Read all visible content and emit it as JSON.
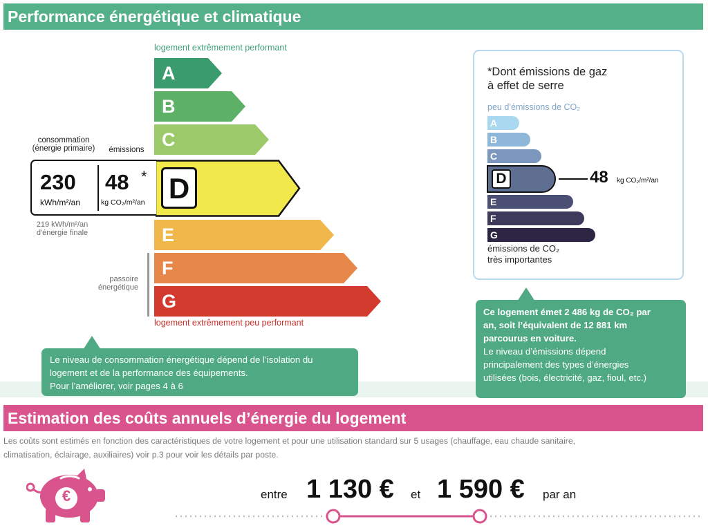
{
  "energy_section": {
    "title": "Performance énergétique et climatique",
    "top_note": "logement extrêmement performant",
    "bottom_note": "logement extrêmement peu performant",
    "consumption_label_1": "consommation",
    "consumption_label_2": "(énergie primaire)",
    "emissions_label": "émissions",
    "consumption_value": "230",
    "consumption_unit": "kWh/m²/an",
    "emissions_value": "48",
    "emissions_star": "*",
    "emissions_unit": "kg CO₂/m²/an",
    "final_energy_1": "219 kWh/m²/an",
    "final_energy_2": "d'énergie finale",
    "passoire_1": "passoire",
    "passoire_2": "énergétique",
    "current_class": "D",
    "classes": [
      {
        "letter": "A",
        "color": "#3a9b6e"
      },
      {
        "letter": "B",
        "color": "#5cb167"
      },
      {
        "letter": "C",
        "color": "#9cc96a"
      },
      {
        "letter": "D",
        "color": "#f1e84c"
      },
      {
        "letter": "E",
        "color": "#f0b84a"
      },
      {
        "letter": "F",
        "color": "#e8874a"
      },
      {
        "letter": "G",
        "color": "#d23a2e"
      }
    ],
    "info_line_1": "Le niveau de consommation énergétique dépend de l’isolation du",
    "info_line_2": "logement et de la performance des équipements.",
    "info_line_3": "Pour l’améliorer, voir pages 4 à 6"
  },
  "co2_panel": {
    "heading_1": "*Dont émissions de gaz",
    "heading_2": "à effet de serre",
    "top_label": "peu d’émissions de CO₂",
    "bottom_label_1": "émissions de CO₂",
    "bottom_label_2": "très importantes",
    "value": "48",
    "unit": "kg CO₂/m²/an",
    "current_class": "D",
    "classes": [
      {
        "letter": "A",
        "color": "#a9d8f0"
      },
      {
        "letter": "B",
        "color": "#8fb7da"
      },
      {
        "letter": "C",
        "color": "#7b97bd"
      },
      {
        "letter": "D",
        "color": "#5f6f91"
      },
      {
        "letter": "E",
        "color": "#4c4f74"
      },
      {
        "letter": "F",
        "color": "#3d3a5c"
      },
      {
        "letter": "G",
        "color": "#2d2544"
      }
    ],
    "info_bold_1": "Ce logement émet 2 486 kg de CO₂ par",
    "info_bold_2": "an, soit l’équivalent de 12 881 km",
    "info_bold_3": "parcourus en voiture.",
    "info_line_1": "Le niveau d’émissions dépend",
    "info_line_2": "principalement des types d’énergies",
    "info_line_3": "utilisées (bois, électricité, gaz, fioul, etc.)"
  },
  "cost_section": {
    "title": "Estimation des coûts annuels d’énergie du logement",
    "description_1": "Les coûts sont estimés en fonction des caractéristiques de votre logement et pour une utilisation standard sur 5 usages (chauffage, eau chaude sanitaire,",
    "description_2": "climatisation, éclairage, auxiliaires) voir p.3 pour voir les détails par poste.",
    "between": "entre",
    "min_cost": "1 130 €",
    "and": "et",
    "max_cost": "1 590 €",
    "per_year": "par an",
    "icon_symbol": "€",
    "accent_color": "#d9538d"
  }
}
